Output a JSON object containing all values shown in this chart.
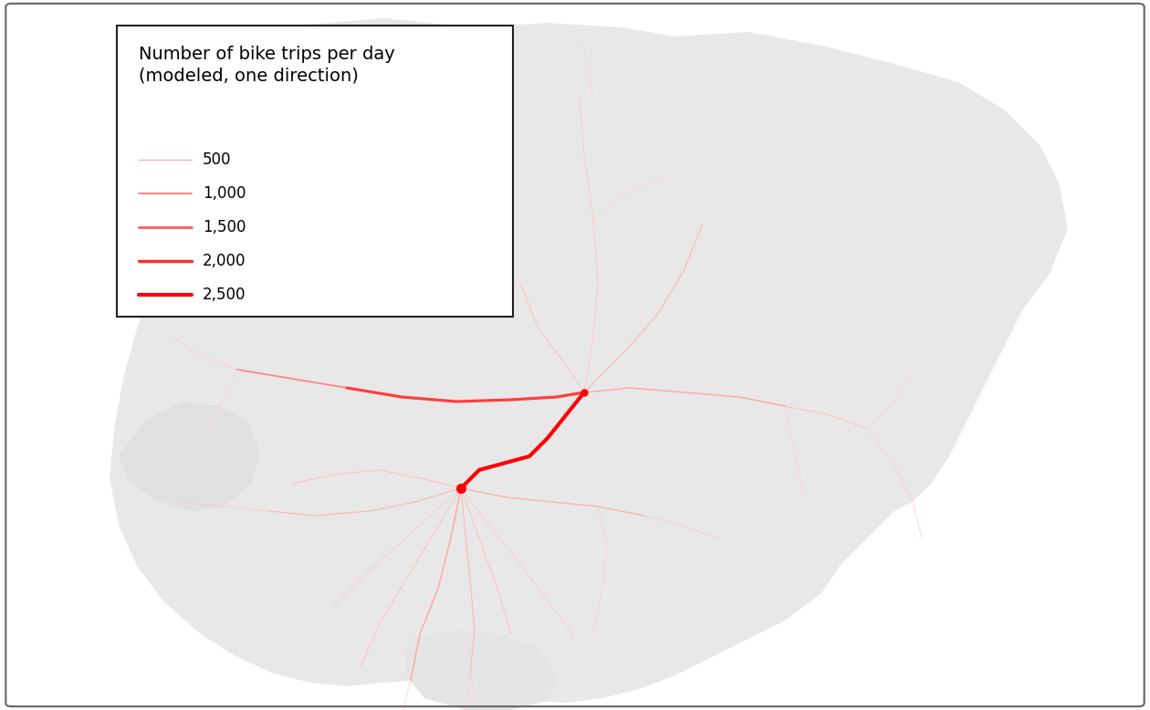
{
  "legend_labels": [
    "500",
    "1,000",
    "1,500",
    "2,000",
    "2,500"
  ],
  "legend_values": [
    500,
    1000,
    1500,
    2000,
    2500
  ],
  "figure_bg": "#ffffff",
  "map_bg": "#ffffff",
  "land_color": "#e8e8e8",
  "land_color2": "#d8d8d8",
  "route_color_min": [
    1.0,
    0.85,
    0.85
  ],
  "route_color_max": [
    1.0,
    0.0,
    0.0
  ],
  "hub1": [
    0.615,
    0.555
  ],
  "hub2": [
    0.505,
    0.68
  ],
  "legend_title": "Number of bike trips per day\n(modeled, one direction)",
  "legend_fontsize": 14,
  "legend_item_fontsize": 12
}
